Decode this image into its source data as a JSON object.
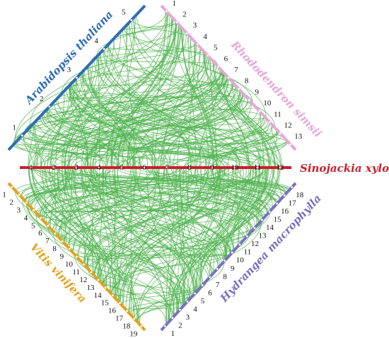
{
  "colors": {
    "links": "#4db34d",
    "arabidopsis": "#2e6db4",
    "rhododendron": "#e8a6d8",
    "sinojackia": "#c8202c",
    "vitis": "#e3a21a",
    "hydrangea": "#7a6fc2",
    "tick_text": "#111111"
  },
  "species": {
    "arabidopsis": {
      "name": "Arabidopsis thaliana",
      "chromosomes": [
        "1",
        "2",
        "3",
        "4",
        "5"
      ]
    },
    "rhododendron": {
      "name": "Rhododendron simsii",
      "chromosomes": [
        "1",
        "2",
        "3",
        "4",
        "5",
        "6",
        "7",
        "8",
        "9",
        "10",
        "11",
        "12",
        "13"
      ]
    },
    "sinojackia": {
      "name": "Sinojackia xylocarpa",
      "chromosomes": [
        "1",
        "2",
        "3",
        "4",
        "5",
        "6",
        "7",
        "8",
        "9",
        "10",
        "11",
        "12"
      ]
    },
    "vitis": {
      "name": "Vitis vinifera",
      "chromosomes": [
        "1",
        "2",
        "3",
        "4",
        "5",
        "6",
        "7",
        "8",
        "9",
        "10",
        "11",
        "12",
        "13",
        "14",
        "15",
        "16",
        "17",
        "18",
        "19"
      ]
    },
    "hydrangea": {
      "name": "Hydrangea macrophylla",
      "chromosomes": [
        "1",
        "2",
        "3",
        "4",
        "5",
        "6",
        "7",
        "8",
        "9",
        "10",
        "11",
        "12",
        "13",
        "14",
        "15",
        "16",
        "17",
        "18"
      ]
    }
  }
}
